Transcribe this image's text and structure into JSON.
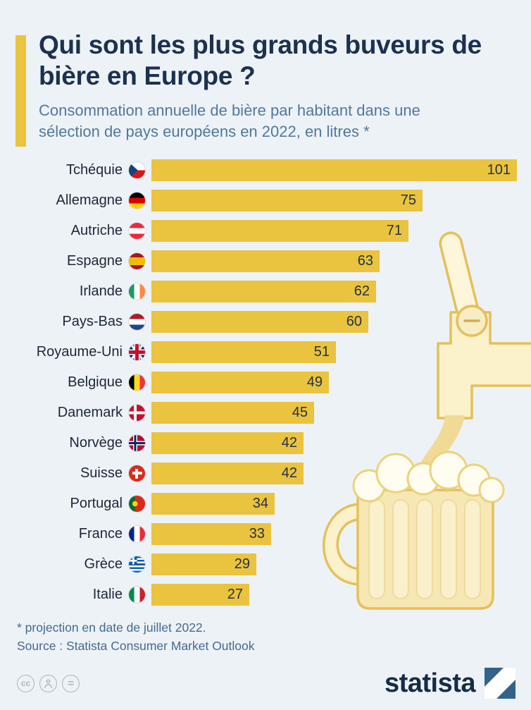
{
  "header": {
    "title": "Qui sont les plus grands buveurs de bière en Europe ?",
    "subtitle": "Consommation annuelle de bière par habitant dans une sélection de pays européens en 2022, en litres *"
  },
  "chart_data": {
    "type": "bar",
    "orientation": "horizontal",
    "title": "Qui sont les plus grands buveurs de bière en Europe ?",
    "unit": "litres",
    "xlabel": "",
    "ylabel": "",
    "xlim": [
      0,
      101
    ],
    "grid": false,
    "legend": false,
    "bar_color": "#eac33f",
    "categories": [
      "Tchéquie",
      "Allemagne",
      "Autriche",
      "Espagne",
      "Irlande",
      "Pays-Bas",
      "Royaume-Uni",
      "Belgique",
      "Danemark",
      "Norvège",
      "Suisse",
      "Portugal",
      "France",
      "Grèce",
      "Italie"
    ],
    "values": [
      101,
      75,
      71,
      63,
      62,
      60,
      51,
      49,
      45,
      42,
      42,
      34,
      33,
      29,
      27
    ],
    "flags": [
      "cz",
      "de",
      "at",
      "es",
      "ie",
      "nl",
      "gb",
      "be",
      "dk",
      "no",
      "ch",
      "pt",
      "fr",
      "gr",
      "it"
    ]
  },
  "footer": {
    "note": "* projection en date de juillet 2022.",
    "source": "Source : Statista Consumer Market Outlook"
  },
  "branding": {
    "logo_text": "statista",
    "license_icons": [
      "cc",
      "by",
      "nd"
    ]
  },
  "colors": {
    "background": "#edf2f7",
    "accent_yellow": "#eac33f",
    "title": "#1b3150",
    "subtitle": "#50789d",
    "logo_square": "#33638b"
  }
}
